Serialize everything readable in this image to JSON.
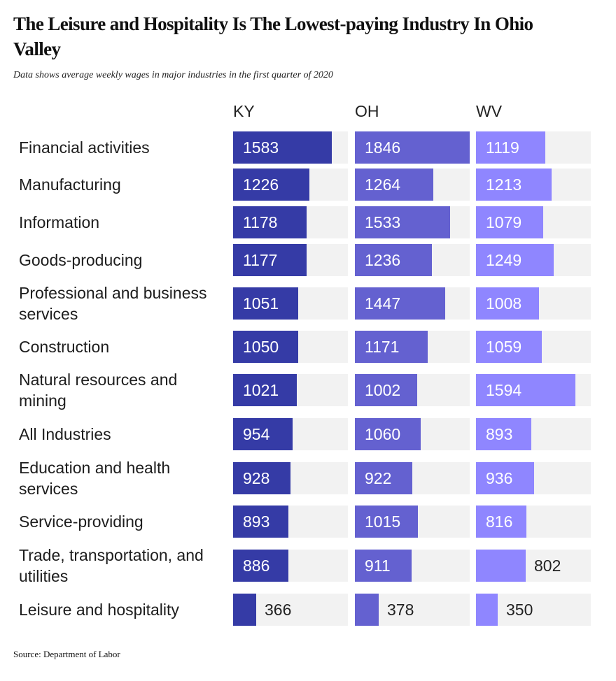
{
  "chart_data": {
    "type": "bar",
    "title": "The Leisure and Hospitality Is The Lowest-paying Industry In Ohio Valley",
    "subtitle": "Data shows average weekly wages in major industries in the first quarter of 2020",
    "source": "Source: Department of Labor",
    "categories": [
      "Financial activities",
      "Manufacturing",
      "Information",
      "Goods-producing",
      "Professional and business services",
      "Construction",
      "Natural resources and mining",
      "All Industries",
      "Education and health services",
      "Service-providing",
      "Trade, transportation, and utilities",
      "Leisure and hospitality"
    ],
    "series": [
      {
        "name": "KY",
        "color": "#353ba6",
        "values": [
          1583,
          1226,
          1178,
          1177,
          1051,
          1050,
          1021,
          954,
          928,
          893,
          886,
          366
        ]
      },
      {
        "name": "OH",
        "color": "#6461d0",
        "values": [
          1846,
          1264,
          1533,
          1236,
          1447,
          1171,
          1002,
          1060,
          922,
          1015,
          911,
          378
        ]
      },
      {
        "name": "WV",
        "color": "#8f86ff",
        "values": [
          1119,
          1213,
          1079,
          1249,
          1008,
          1059,
          1594,
          893,
          936,
          816,
          802,
          350
        ]
      }
    ],
    "xlim": [
      0,
      1846
    ],
    "track_color": "#f2f2f2"
  }
}
